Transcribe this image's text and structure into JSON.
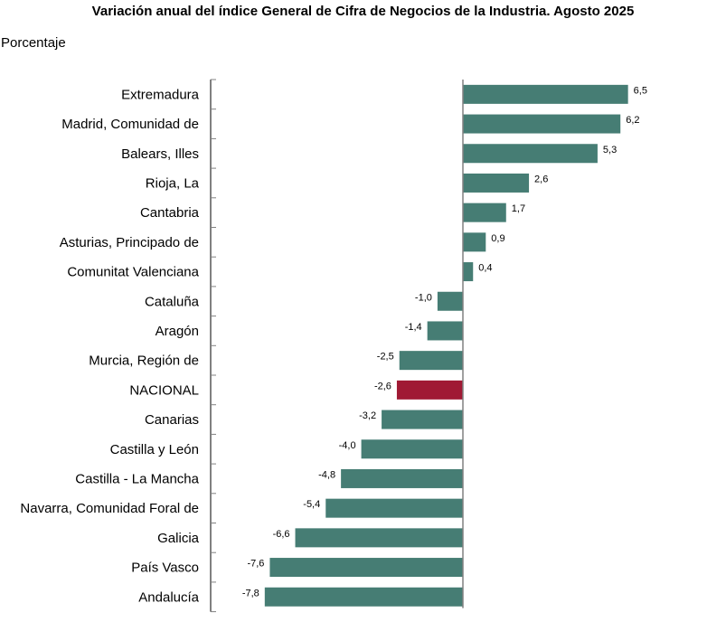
{
  "chart_data": {
    "type": "bar",
    "orientation": "horizontal",
    "title": "Variación anual del índice General de Cifra de Negocios de la Industria. Agosto 2025",
    "ylabel": "Porcentaje",
    "categories": [
      "Extremadura",
      "Madrid, Comunidad de",
      "Balears, Illes",
      "Rioja, La",
      "Cantabria",
      "Asturias, Principado de",
      "Comunitat Valenciana",
      "Cataluña",
      "Aragón",
      "Murcia, Región de",
      "NACIONAL",
      "Canarias",
      "Castilla y León",
      "Castilla - La Mancha",
      "Navarra, Comunidad Foral de",
      "Galicia",
      "País Vasco",
      "Andalucía"
    ],
    "values": [
      6.5,
      6.2,
      5.3,
      2.6,
      1.7,
      0.9,
      0.4,
      -1.0,
      -1.4,
      -2.5,
      -2.6,
      -3.2,
      -4.0,
      -4.8,
      -5.4,
      -6.6,
      -7.6,
      -7.8
    ],
    "labels": [
      "6,5",
      "6,2",
      "5,3",
      "2,6",
      "1,7",
      "0,9",
      "0,4",
      "-1,0",
      "-1,4",
      "-2,5",
      "-2,6",
      "-3,2",
      "-4,0",
      "-4,8",
      "-5,4",
      "-6,6",
      "-7,6",
      "-7,8"
    ],
    "highlight": "NACIONAL",
    "colors": {
      "bar": "#467d74",
      "highlight": "#a01934",
      "axis": "#808080"
    },
    "xlim": [
      -9.9,
      6.5
    ],
    "grid": false
  }
}
